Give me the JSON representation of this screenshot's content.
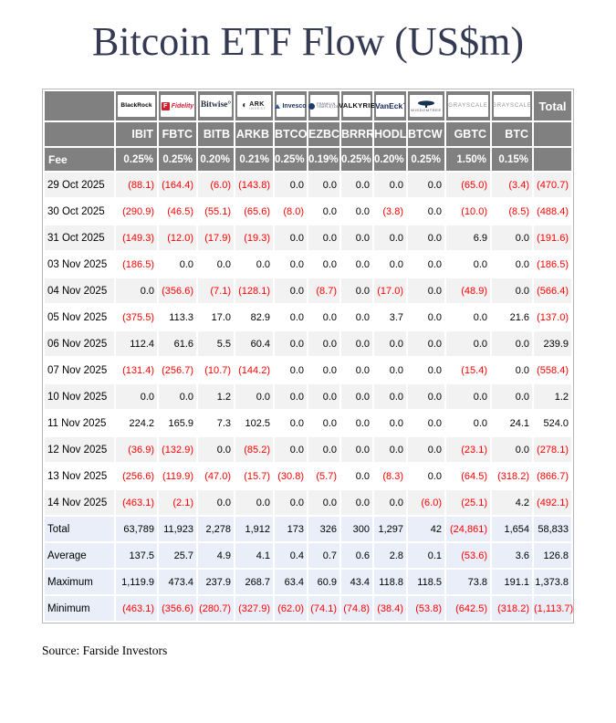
{
  "title": "Bitcoin ETF Flow (US$m)",
  "source": "Source: Farside Investors",
  "colors": {
    "header_bg": "#808080",
    "negative_value": "#ff0000",
    "title_text": "#343a52",
    "stripe_row": "#f2f2f2",
    "summary_row": "#e9eef9"
  },
  "chart_data": {
    "type": "table",
    "title": "Bitcoin ETF Flow (US$m)",
    "fee_label": "Fee",
    "total_label": "Total",
    "providers": [
      {
        "id": "blackrock",
        "text": "BlackRock"
      },
      {
        "id": "fidelity",
        "text": "Fidelity"
      },
      {
        "id": "bitwise",
        "text": "Bitwise"
      },
      {
        "id": "ark",
        "text": "ARK INVEST"
      },
      {
        "id": "invesco",
        "text": "Invesco"
      },
      {
        "id": "franklin",
        "text": "FRANKLIN TEMPLETON"
      },
      {
        "id": "valkyrie",
        "text": "VALKYRIE"
      },
      {
        "id": "vaneck",
        "text": "VanEck"
      },
      {
        "id": "wisdomtree",
        "text": "WISDOMTREE"
      },
      {
        "id": "grayscale",
        "text": "GRAYSCALE"
      },
      {
        "id": "grayscale",
        "text": "GRAYSCALE"
      }
    ],
    "columns": [
      "IBIT",
      "FBTC",
      "BITB",
      "ARKB",
      "BTCO",
      "EZBC",
      "BRRR",
      "HODL",
      "BTCW",
      "GBTC",
      "BTC"
    ],
    "fees": [
      "0.25%",
      "0.25%",
      "0.20%",
      "0.21%",
      "0.25%",
      "0.19%",
      "0.25%",
      "0.20%",
      "0.25%",
      "1.50%",
      "0.15%"
    ],
    "rows": [
      {
        "date": "29 Oct 2025",
        "values": [
          "(88.1)",
          "(164.4)",
          "(6.0)",
          "(143.8)",
          "0.0",
          "0.0",
          "0.0",
          "0.0",
          "0.0",
          "(65.0)",
          "(3.4)",
          "(470.7)"
        ]
      },
      {
        "date": "30 Oct 2025",
        "values": [
          "(290.9)",
          "(46.5)",
          "(55.1)",
          "(65.6)",
          "(8.0)",
          "0.0",
          "0.0",
          "(3.8)",
          "0.0",
          "(10.0)",
          "(8.5)",
          "(488.4)"
        ]
      },
      {
        "date": "31 Oct 2025",
        "values": [
          "(149.3)",
          "(12.0)",
          "(17.9)",
          "(19.3)",
          "0.0",
          "0.0",
          "0.0",
          "0.0",
          "0.0",
          "6.9",
          "0.0",
          "(191.6)"
        ]
      },
      {
        "date": "03 Nov 2025",
        "values": [
          "(186.5)",
          "0.0",
          "0.0",
          "0.0",
          "0.0",
          "0.0",
          "0.0",
          "0.0",
          "0.0",
          "0.0",
          "0.0",
          "(186.5)"
        ]
      },
      {
        "date": "04 Nov 2025",
        "values": [
          "0.0",
          "(356.6)",
          "(7.1)",
          "(128.1)",
          "0.0",
          "(8.7)",
          "0.0",
          "(17.0)",
          "0.0",
          "(48.9)",
          "0.0",
          "(566.4)"
        ]
      },
      {
        "date": "05 Nov 2025",
        "values": [
          "(375.5)",
          "113.3",
          "17.0",
          "82.9",
          "0.0",
          "0.0",
          "0.0",
          "3.7",
          "0.0",
          "0.0",
          "21.6",
          "(137.0)"
        ]
      },
      {
        "date": "06 Nov 2025",
        "values": [
          "112.4",
          "61.6",
          "5.5",
          "60.4",
          "0.0",
          "0.0",
          "0.0",
          "0.0",
          "0.0",
          "0.0",
          "0.0",
          "239.9"
        ]
      },
      {
        "date": "07 Nov 2025",
        "values": [
          "(131.4)",
          "(256.7)",
          "(10.7)",
          "(144.2)",
          "0.0",
          "0.0",
          "0.0",
          "0.0",
          "0.0",
          "(15.4)",
          "0.0",
          "(558.4)"
        ]
      },
      {
        "date": "10 Nov 2025",
        "values": [
          "0.0",
          "0.0",
          "1.2",
          "0.0",
          "0.0",
          "0.0",
          "0.0",
          "0.0",
          "0.0",
          "0.0",
          "0.0",
          "1.2"
        ]
      },
      {
        "date": "11 Nov 2025",
        "values": [
          "224.2",
          "165.9",
          "7.3",
          "102.5",
          "0.0",
          "0.0",
          "0.0",
          "0.0",
          "0.0",
          "0.0",
          "24.1",
          "524.0"
        ]
      },
      {
        "date": "12 Nov 2025",
        "values": [
          "(36.9)",
          "(132.9)",
          "0.0",
          "(85.2)",
          "0.0",
          "0.0",
          "0.0",
          "0.0",
          "0.0",
          "(23.1)",
          "0.0",
          "(278.1)"
        ]
      },
      {
        "date": "13 Nov 2025",
        "values": [
          "(256.6)",
          "(119.9)",
          "(47.0)",
          "(15.7)",
          "(30.8)",
          "(5.7)",
          "0.0",
          "(8.3)",
          "0.0",
          "(64.5)",
          "(318.2)",
          "(866.7)"
        ]
      },
      {
        "date": "14 Nov 2025",
        "values": [
          "(463.1)",
          "(2.1)",
          "0.0",
          "0.0",
          "0.0",
          "0.0",
          "0.0",
          "0.0",
          "(6.0)",
          "(25.1)",
          "4.2",
          "(492.1)"
        ]
      }
    ],
    "summary": [
      {
        "label": "Total",
        "values": [
          "63,789",
          "11,923",
          "2,278",
          "1,912",
          "173",
          "326",
          "300",
          "1,297",
          "42",
          "(24,861)",
          "1,654",
          "58,833"
        ]
      },
      {
        "label": "Average",
        "values": [
          "137.5",
          "25.7",
          "4.9",
          "4.1",
          "0.4",
          "0.7",
          "0.6",
          "2.8",
          "0.1",
          "(53.6)",
          "3.6",
          "126.8"
        ]
      },
      {
        "label": "Maximum",
        "values": [
          "1,119.9",
          "473.4",
          "237.9",
          "268.7",
          "63.4",
          "60.9",
          "43.4",
          "118.8",
          "118.5",
          "73.8",
          "191.1",
          "1,373.8"
        ]
      },
      {
        "label": "Minimum",
        "values": [
          "(463.1)",
          "(356.6)",
          "(280.7)",
          "(327.9)",
          "(62.0)",
          "(74.1)",
          "(74.8)",
          "(38.4)",
          "(53.8)",
          "(642.5)",
          "(318.2)",
          "(1,113.7)"
        ]
      }
    ]
  }
}
